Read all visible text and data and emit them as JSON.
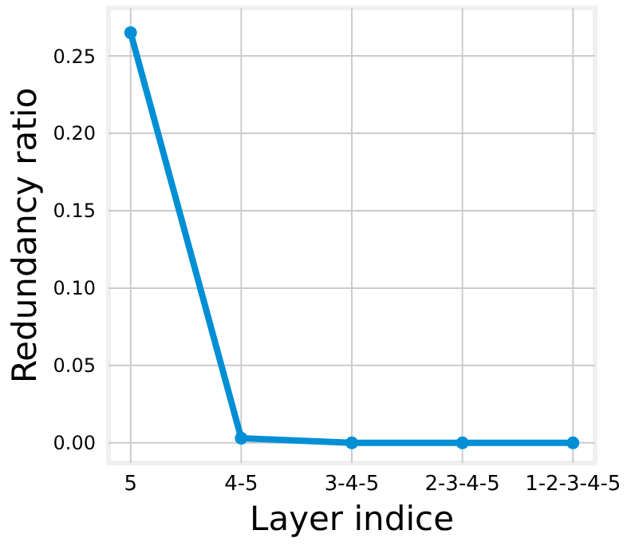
{
  "chart_data": {
    "type": "line",
    "xlabel": "Layer indice",
    "ylabel": "Redundancy ratio",
    "categories": [
      "5",
      "4-5",
      "3-4-5",
      "2-3-4-5",
      "1-2-3-4-5"
    ],
    "series": [
      {
        "color": "#008fd5",
        "values": [
          0.265,
          0.003,
          0,
          0,
          0
        ]
      }
    ],
    "ylim": [
      -0.013,
      0.281
    ],
    "yticks": [
      {
        "value": 0,
        "label": "0.00"
      },
      {
        "value": 0.05,
        "label": "0.05"
      },
      {
        "value": 0.1,
        "label": "0.10"
      },
      {
        "value": 0.15,
        "label": "0.15"
      },
      {
        "value": 0.2,
        "label": "0.20"
      },
      {
        "value": 0.25,
        "label": "0.25"
      }
    ],
    "grid": true,
    "marker": "circle"
  }
}
